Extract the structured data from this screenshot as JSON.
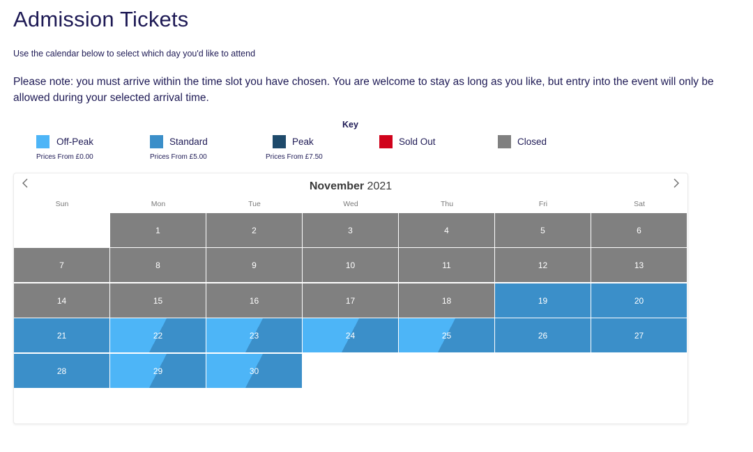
{
  "page": {
    "title": "Admission Tickets",
    "subtitle": "Use the calendar below to select which day you'd like to attend",
    "note": "Please note: you must arrive within the time slot you have chosen. You are welcome to stay as long as you like, but entry into the event will only be allowed during your selected arrival time."
  },
  "key": {
    "title": "Key",
    "items": [
      {
        "label": "Off-Peak",
        "price": "Prices From £0.00",
        "color": "#4db5f7"
      },
      {
        "label": "Standard",
        "price": "Prices From £5.00",
        "color": "#3b8fc9"
      },
      {
        "label": "Peak",
        "price": "Prices From £7.50",
        "color": "#1e4a6b"
      },
      {
        "label": "Sold Out",
        "price": "",
        "color": "#d0021b"
      },
      {
        "label": "Closed",
        "price": "",
        "color": "#808080"
      }
    ]
  },
  "calendar": {
    "month": "November",
    "year": "2021",
    "prev_icon": "chevron-left-icon",
    "next_icon": "chevron-right-icon",
    "weekdays": [
      "Sun",
      "Mon",
      "Tue",
      "Wed",
      "Thu",
      "Fri",
      "Sat"
    ],
    "days": [
      {
        "n": "1",
        "status": "closed"
      },
      {
        "n": "2",
        "status": "closed"
      },
      {
        "n": "3",
        "status": "closed"
      },
      {
        "n": "4",
        "status": "closed"
      },
      {
        "n": "5",
        "status": "closed"
      },
      {
        "n": "6",
        "status": "closed"
      },
      {
        "n": "7",
        "status": "closed"
      },
      {
        "n": "8",
        "status": "closed"
      },
      {
        "n": "9",
        "status": "closed"
      },
      {
        "n": "10",
        "status": "closed"
      },
      {
        "n": "11",
        "status": "closed"
      },
      {
        "n": "12",
        "status": "closed"
      },
      {
        "n": "13",
        "status": "closed"
      },
      {
        "n": "14",
        "status": "closed"
      },
      {
        "n": "15",
        "status": "closed"
      },
      {
        "n": "16",
        "status": "closed"
      },
      {
        "n": "17",
        "status": "closed"
      },
      {
        "n": "18",
        "status": "closed"
      },
      {
        "n": "19",
        "status": "standard"
      },
      {
        "n": "20",
        "status": "standard"
      },
      {
        "n": "21",
        "status": "standard"
      },
      {
        "n": "22",
        "status": "off-peak/standard"
      },
      {
        "n": "23",
        "status": "off-peak/standard"
      },
      {
        "n": "24",
        "status": "off-peak/standard"
      },
      {
        "n": "25",
        "status": "off-peak/standard"
      },
      {
        "n": "26",
        "status": "standard"
      },
      {
        "n": "27",
        "status": "standard"
      },
      {
        "n": "28",
        "status": "standard"
      },
      {
        "n": "29",
        "status": "off-peak/standard"
      },
      {
        "n": "30",
        "status": "off-peak/standard"
      }
    ]
  }
}
